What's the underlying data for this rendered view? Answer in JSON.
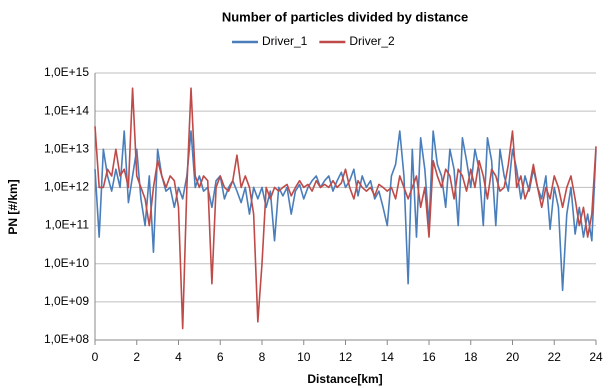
{
  "chart_data": {
    "type": "line",
    "title": "Number of particles divided by distance",
    "xlabel": "Distance[km]",
    "ylabel": "PN [#/km]",
    "ylog": true,
    "grid": true,
    "legend": "top",
    "xlim": [
      0,
      24
    ],
    "xticks": [
      0,
      2,
      4,
      6,
      8,
      10,
      12,
      14,
      16,
      18,
      20,
      22,
      24
    ],
    "ylim": [
      100000000.0,
      1000000000000000.0
    ],
    "yticks": [
      {
        "value": 100000000.0,
        "label": "1,0E+08"
      },
      {
        "value": 1000000000.0,
        "label": "1,0E+09"
      },
      {
        "value": 10000000000.0,
        "label": "1,0E+10"
      },
      {
        "value": 100000000000.0,
        "label": "1,0E+11"
      },
      {
        "value": 1000000000000.0,
        "label": "1,0E+12"
      },
      {
        "value": 10000000000000.0,
        "label": "1,0E+13"
      },
      {
        "value": 100000000000000.0,
        "label": "1,0E+14"
      },
      {
        "value": 1000000000000000.0,
        "label": "1,0E+15"
      }
    ],
    "x": [
      0,
      0.2,
      0.4,
      0.6,
      0.8,
      1,
      1.2,
      1.4,
      1.6,
      1.8,
      2,
      2.2,
      2.4,
      2.6,
      2.8,
      3,
      3.2,
      3.4,
      3.6,
      3.8,
      4,
      4.2,
      4.4,
      4.6,
      4.8,
      5,
      5.2,
      5.4,
      5.6,
      5.8,
      6,
      6.2,
      6.4,
      6.6,
      6.8,
      7,
      7.2,
      7.4,
      7.6,
      7.8,
      8,
      8.2,
      8.4,
      8.6,
      8.8,
      9,
      9.2,
      9.4,
      9.6,
      9.8,
      10,
      10.2,
      10.4,
      10.6,
      10.8,
      11,
      11.2,
      11.4,
      11.6,
      11.8,
      12,
      12.2,
      12.4,
      12.6,
      12.8,
      13,
      13.2,
      13.4,
      13.6,
      13.8,
      14,
      14.2,
      14.4,
      14.6,
      14.8,
      15,
      15.2,
      15.4,
      15.6,
      15.8,
      16,
      16.2,
      16.4,
      16.6,
      16.8,
      17,
      17.2,
      17.4,
      17.6,
      17.8,
      18,
      18.2,
      18.4,
      18.6,
      18.8,
      19,
      19.2,
      19.4,
      19.6,
      19.8,
      20,
      20.2,
      20.4,
      20.6,
      20.8,
      21,
      21.2,
      21.4,
      21.6,
      21.8,
      22,
      22.2,
      22.4,
      22.6,
      22.8,
      23,
      23.2,
      23.4,
      23.6,
      23.8,
      24
    ],
    "series": [
      {
        "name": "Driver_1",
        "color": "#4a7ebb",
        "values": [
          3000000000000.0,
          50000000000.0,
          10000000000000.0,
          2000000000000.0,
          800000000000.0,
          3000000000000.0,
          1000000000000.0,
          30000000000000.0,
          400000000000.0,
          2000000000000.0,
          10000000000000.0,
          500000000000.0,
          100000000000.0,
          2000000000000.0,
          20000000000.0,
          10000000000000.0,
          2000000000000.0,
          800000000000.0,
          1000000000000.0,
          300000000000.0,
          1000000000000.0,
          500000000000.0,
          2000000000000.0,
          30000000000000.0,
          1000000000000.0,
          2000000000000.0,
          800000000000.0,
          1000000000000.0,
          300000000000.0,
          1500000000000.0,
          2000000000000.0,
          500000000000.0,
          1000000000000.0,
          1500000000000.0,
          800000000000.0,
          400000000000.0,
          1000000000000.0,
          200000000000.0,
          1000000000000.0,
          500000000000.0,
          1000000000000.0,
          300000000000.0,
          800000000000.0,
          40000000000.0,
          1000000000000.0,
          600000000000.0,
          1000000000000.0,
          200000000000.0,
          800000000000.0,
          1200000000000.0,
          500000000000.0,
          1000000000000.0,
          1500000000000.0,
          2000000000000.0,
          1000000000000.0,
          1500000000000.0,
          2000000000000.0,
          800000000000.0,
          1500000000000.0,
          2500000000000.0,
          1000000000000.0,
          1500000000000.0,
          3000000000000.0,
          600000000000.0,
          2000000000000.0,
          1000000000000.0,
          1500000000000.0,
          500000000000.0,
          800000000000.0,
          300000000000.0,
          100000000000.0,
          2000000000000.0,
          4000000000000.0,
          30000000000000.0,
          2000000000000.0,
          3000000000.0,
          10000000000000.0,
          50000000000.0,
          20000000000000.0,
          3000000000000.0,
          100000000000.0,
          30000000000000.0,
          4000000000000.0,
          2000000000000.0,
          300000000000.0,
          10000000000000.0,
          3000000000000.0,
          100000000000.0,
          20000000000000.0,
          5000000000000.0,
          1000000000000.0,
          10000000000000.0,
          3000000000000.0,
          100000000000.0,
          20000000000000.0,
          5000000000000.0,
          100000000000.0,
          10000000000000.0,
          2000000000000.0,
          800000000000.0,
          10000000000000.0,
          3000000000000.0,
          500000000000.0,
          2000000000000.0,
          800000000000.0,
          3000000000000.0,
          1000000000000.0,
          500000000000.0,
          2000000000000.0,
          80000000000.0,
          1000000000000.0,
          300000000000.0,
          2000000000.0,
          200000000000.0,
          1000000000000.0,
          60000000000.0,
          300000000000.0,
          50000000000.0,
          200000000000.0,
          40000000000.0,
          10000000000000.0
        ]
      },
      {
        "name": "Driver_2",
        "color": "#be4b48",
        "values": [
          40000000000000.0,
          1000000000000.0,
          1000000000000.0,
          3000000000000.0,
          2000000000000.0,
          10000000000000.0,
          2000000000000.0,
          3000000000000.0,
          1000000000000.0,
          400000000000000.0,
          2000000000000.0,
          1000000000000.0,
          500000000000.0,
          100000000000.0,
          1000000000000.0,
          5000000000000.0,
          2000000000000.0,
          1000000000000.0,
          2000000000000.0,
          1500000000000.0,
          300000000000.0,
          200000000.0,
          1000000000000.0,
          400000000000000.0,
          2000000000000.0,
          1000000000000.0,
          2000000000000.0,
          1500000000000.0,
          3000000000.0,
          1000000000000.0,
          2000000000000.0,
          1000000000000.0,
          800000000000.0,
          1500000000000.0,
          7000000000000.0,
          1000000000000.0,
          2000000000000.0,
          1000000000000.0,
          200000000000.0,
          300000000.0,
          10000000000.0,
          1000000000000.0,
          500000000000.0,
          1000000000000.0,
          800000000000.0,
          1000000000000.0,
          1200000000000.0,
          600000000000.0,
          1000000000000.0,
          1500000000000.0,
          1000000000000.0,
          1200000000000.0,
          800000000000.0,
          1500000000000.0,
          1000000000000.0,
          1200000000000.0,
          1000000000000.0,
          1500000000000.0,
          1000000000000.0,
          1300000000000.0,
          3000000000000.0,
          1000000000000.0,
          500000000000.0,
          1500000000000.0,
          1000000000000.0,
          800000000000.0,
          1000000000000.0,
          600000000000.0,
          1200000000000.0,
          1000000000000.0,
          800000000000.0,
          1000000000000.0,
          500000000000.0,
          2000000000000.0,
          1000000000000.0,
          500000000000.0,
          1000000000000.0,
          2000000000000.0,
          300000000000.0,
          1000000000000.0,
          50000000000.0,
          5000000000000.0,
          2000000000000.0,
          1000000000000.0,
          3000000000000.0,
          2000000000000.0,
          500000000000.0,
          3000000000000.0,
          2000000000000.0,
          800000000000.0,
          3000000000000.0,
          1000000000000.0,
          5000000000000.0,
          2000000000000.0,
          500000000000.0,
          3000000000000.0,
          2000000000000.0,
          800000000000.0,
          1000000000000.0,
          4000000000000.0,
          30000000000000.0,
          1000000000000.0,
          2000000000000.0,
          500000000000.0,
          1000000000000.0,
          4000000000000.0,
          1000000000000.0,
          300000000000.0,
          1000000000000.0,
          500000000000.0,
          2000000000000.0,
          1000000000000.0,
          300000000000.0,
          1000000000000.0,
          2000000000000.0,
          500000000000.0,
          100000000000.0,
          300000000000.0,
          50000000000.0,
          200000000000.0,
          12000000000000.0
        ]
      }
    ]
  }
}
